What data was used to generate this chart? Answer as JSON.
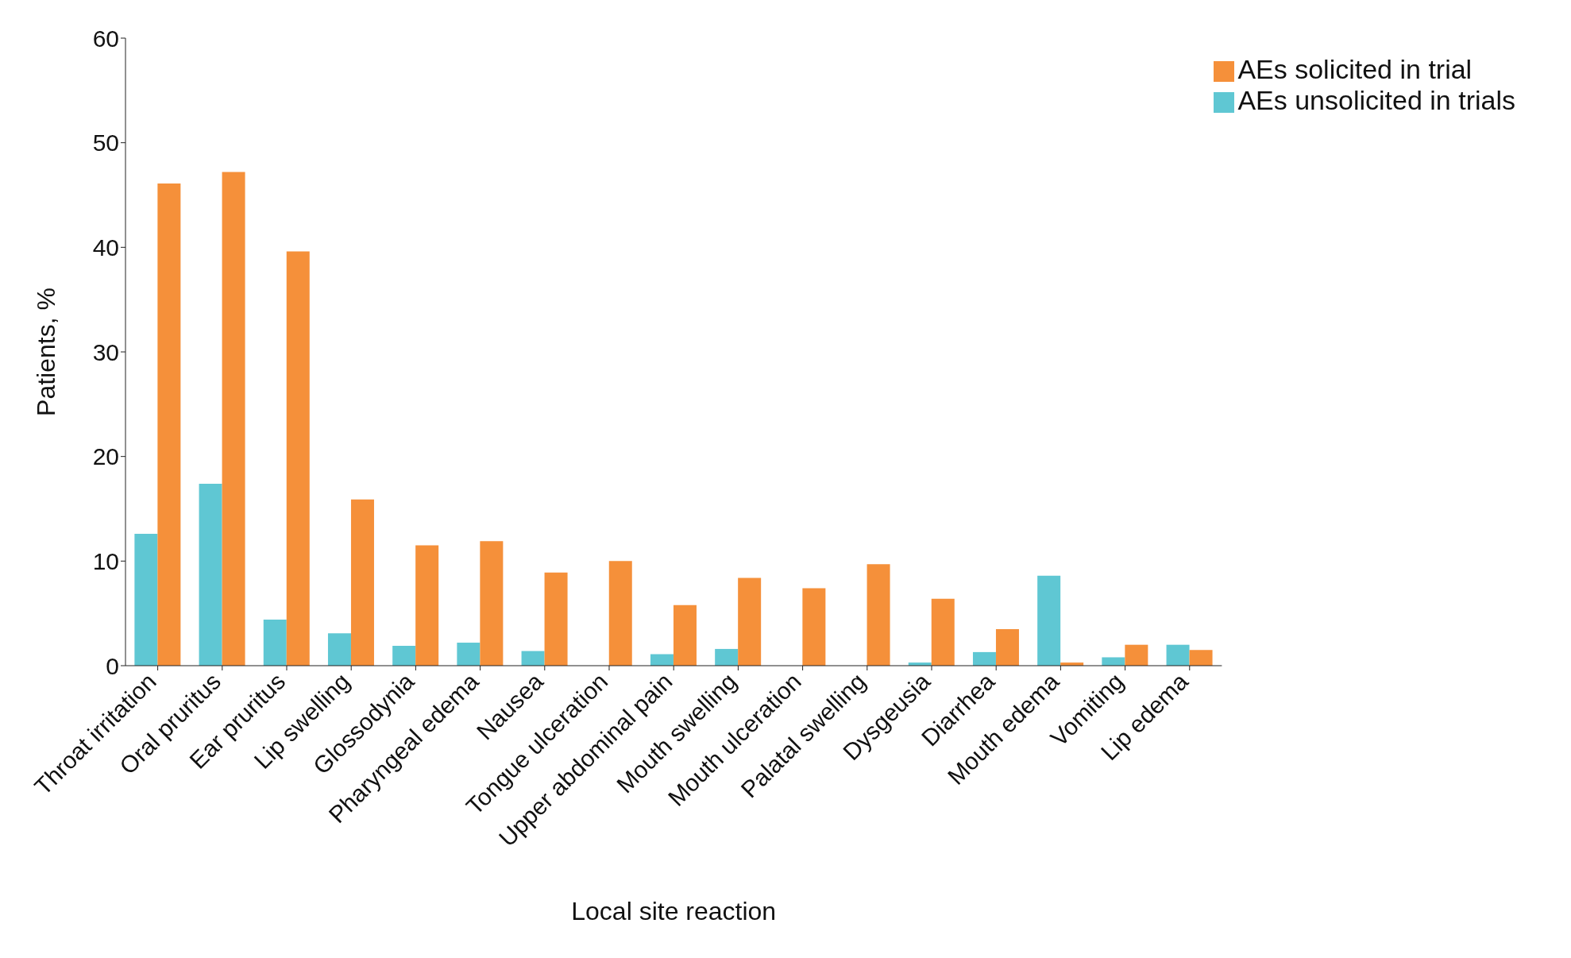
{
  "chart_data": {
    "type": "bar",
    "xlabel": "Local site reaction",
    "ylabel": "Patients, %",
    "categories": [
      "Throat irritation",
      "Oral pruritus",
      "Ear pruritus",
      "Lip swelling",
      "Glossodynia",
      "Pharyngeal edema",
      "Nausea",
      "Tongue ulceration",
      "Upper abdominal pain",
      "Mouth swelling",
      "Mouth ulceration",
      "Palatal swelling",
      "Dysgeusia",
      "Diarrhea",
      "Mouth edema",
      "Vomiting",
      "Lip edema"
    ],
    "series": [
      {
        "name": "AEs unsolicited in trials",
        "color": "#5fc7d3",
        "values": [
          12.6,
          17.4,
          4.4,
          3.1,
          1.9,
          2.2,
          1.4,
          0,
          1.1,
          1.6,
          0,
          0,
          0.3,
          1.3,
          8.6,
          0.8,
          2.0
        ]
      },
      {
        "name": "AEs solicited in trial",
        "color": "#f5903a",
        "values": [
          46.1,
          47.2,
          39.6,
          15.9,
          11.5,
          11.9,
          8.9,
          10.0,
          5.8,
          8.4,
          7.4,
          9.7,
          6.4,
          3.5,
          0.3,
          2.0,
          1.5
        ]
      }
    ],
    "ylim": [
      0,
      60
    ],
    "yticks": [
      0,
      10,
      20,
      30,
      40,
      50,
      60
    ],
    "grid": false,
    "legend": "top right"
  }
}
